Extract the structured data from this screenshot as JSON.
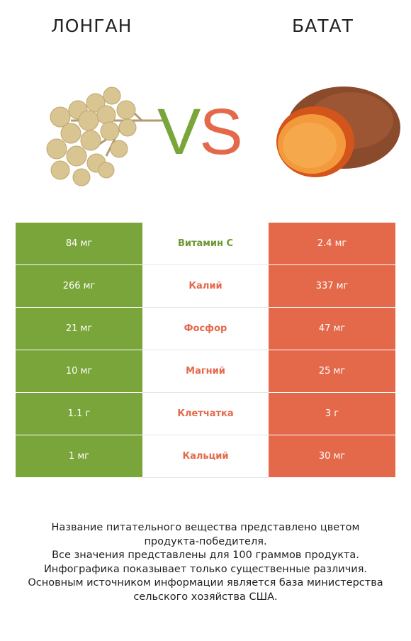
{
  "header": {
    "left_title": "ЛОНГАН",
    "right_title": "БАТАТ",
    "vs_v": "V",
    "vs_s": "S"
  },
  "colors": {
    "left_accent": "#7aa53a",
    "right_accent": "#e4694a"
  },
  "rows": [
    {
      "nutrient": "Витамин C",
      "left": "84 мг",
      "right": "2.4 мг",
      "winner": "left"
    },
    {
      "nutrient": "Калий",
      "left": "266 мг",
      "right": "337 мг",
      "winner": "right"
    },
    {
      "nutrient": "Фосфор",
      "left": "21 мг",
      "right": "47 мг",
      "winner": "right"
    },
    {
      "nutrient": "Магний",
      "left": "10 мг",
      "right": "25 мг",
      "winner": "right"
    },
    {
      "nutrient": "Клетчатка",
      "left": "1.1 г",
      "right": "3 г",
      "winner": "right"
    },
    {
      "nutrient": "Кальций",
      "left": "1 мг",
      "right": "30 мг",
      "winner": "right"
    }
  ],
  "footer": {
    "line1": "Название питательного вещества представлено цветом",
    "line2": "продукта-победителя.",
    "line3": "Все значения представлены для 100 граммов продукта.",
    "line4": "Инфографика показывает только существенные различия.",
    "line5": "Основным источником информации является база министерства",
    "line6": "сельского хозяйства США."
  }
}
